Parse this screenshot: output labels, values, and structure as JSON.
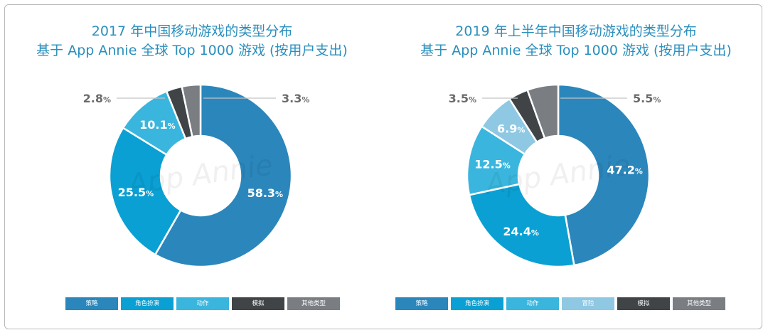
{
  "colors": {
    "strategy": "#2b86bb",
    "rpg": "#0aa0d3",
    "action": "#3ab6de",
    "adventure": "#8ec8e3",
    "simulation": "#414447",
    "other": "#7a7e83",
    "title": "#2a8fbd",
    "leader": "#c4c4c4",
    "outside_label": "#6b6b6b"
  },
  "watermark": "App Annie",
  "chart_data": [
    {
      "type": "pie",
      "variant": "donut",
      "title": "2017 年中国移动游戏的类型分布",
      "subtitle": "基于 App Annie 全球 Top 1000 游戏 (按用户支出)",
      "unit": "%",
      "legend_position": "bottom",
      "slices": [
        {
          "label": "策略",
          "value": 58.3,
          "color_key": "strategy",
          "label_text": "58.3",
          "inside": true
        },
        {
          "label": "角色扮演",
          "value": 25.5,
          "color_key": "rpg",
          "label_text": "25.5",
          "inside": true
        },
        {
          "label": "动作",
          "value": 10.1,
          "color_key": "action",
          "label_text": "10.1",
          "inside": true
        },
        {
          "label": "模拟",
          "value": 2.8,
          "color_key": "simulation",
          "label_text": "2.8",
          "inside": false,
          "side": "left"
        },
        {
          "label": "其他类型",
          "value": 3.3,
          "color_key": "other",
          "label_text": "3.3",
          "inside": false,
          "side": "right"
        }
      ]
    },
    {
      "type": "pie",
      "variant": "donut",
      "title": "2019 年上半年中国移动游戏的类型分布",
      "subtitle": "基于 App Annie 全球 Top 1000 游戏 (按用户支出)",
      "unit": "%",
      "legend_position": "bottom",
      "slices": [
        {
          "label": "策略",
          "value": 47.2,
          "color_key": "strategy",
          "label_text": "47.2",
          "inside": true
        },
        {
          "label": "角色扮演",
          "value": 24.4,
          "color_key": "rpg",
          "label_text": "24.4",
          "inside": true
        },
        {
          "label": "动作",
          "value": 12.5,
          "color_key": "action",
          "label_text": "12.5",
          "inside": true
        },
        {
          "label": "冒险",
          "value": 6.9,
          "color_key": "adventure",
          "label_text": "6.9",
          "inside": true
        },
        {
          "label": "模拟",
          "value": 3.5,
          "color_key": "simulation",
          "label_text": "3.5",
          "inside": false,
          "side": "left"
        },
        {
          "label": "其他类型",
          "value": 5.5,
          "color_key": "other",
          "label_text": "5.5",
          "inside": false,
          "side": "right"
        }
      ]
    }
  ]
}
